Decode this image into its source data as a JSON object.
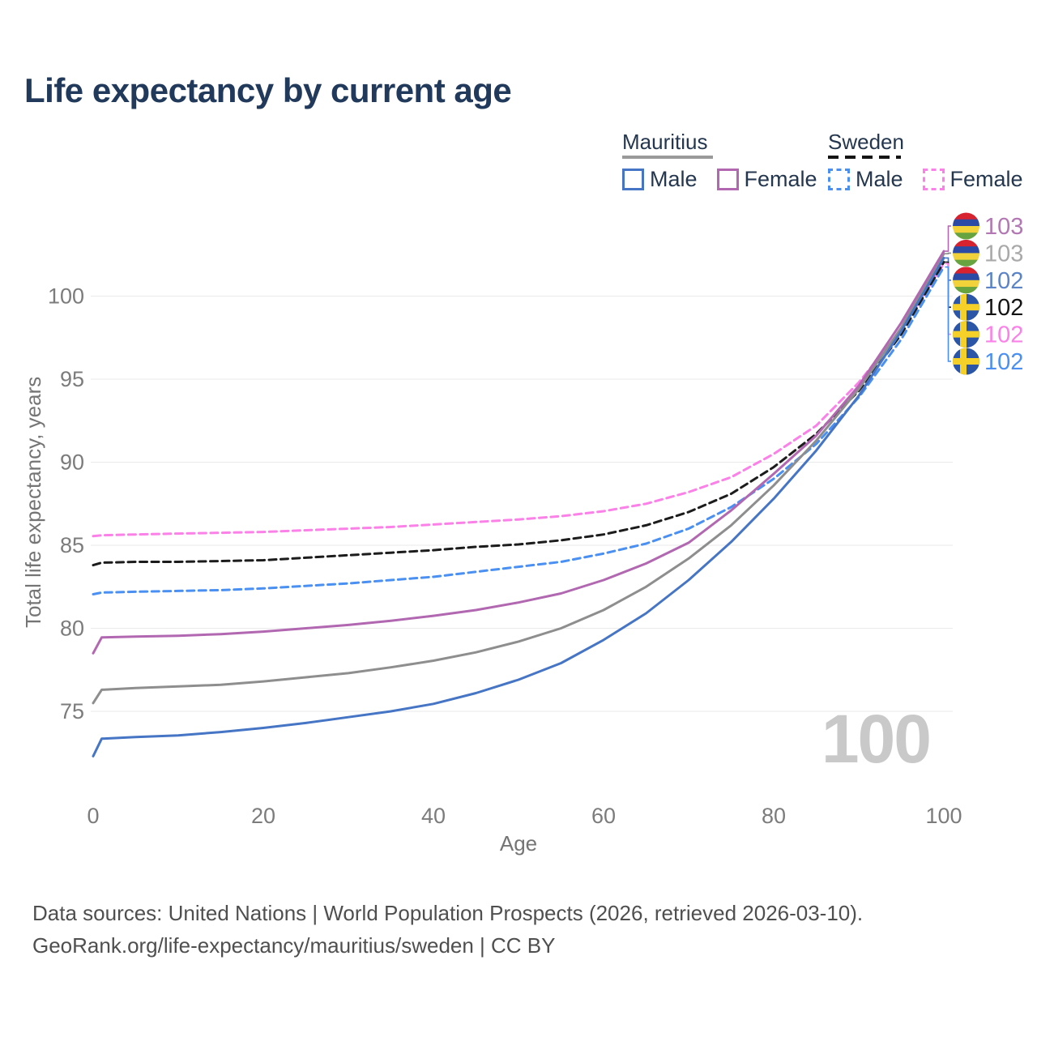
{
  "title": "Life expectancy by current age",
  "legend": {
    "groups": [
      {
        "country": "Mauritius",
        "line_style": "solid",
        "line_color": "#9a9a9a",
        "items": [
          {
            "label": "Male",
            "color": "#4575c4",
            "dashed": false
          },
          {
            "label": "Female",
            "color": "#b168b1",
            "dashed": false
          }
        ]
      },
      {
        "country": "Sweden",
        "line_style": "dashed",
        "line_color": "#141414",
        "items": [
          {
            "label": "Male",
            "color": "#4a90f2",
            "dashed": true
          },
          {
            "label": "Female",
            "color": "#fb80e8",
            "dashed": true
          }
        ]
      }
    ]
  },
  "chart_data": {
    "type": "line",
    "title": "Life expectancy by current age",
    "xlabel": "Age",
    "ylabel": "Total life expectancy, years",
    "xlim": [
      0,
      100
    ],
    "ylim": [
      72,
      104
    ],
    "x_ticks": [
      0,
      20,
      40,
      60,
      80,
      100
    ],
    "y_ticks": [
      75,
      80,
      85,
      90,
      95,
      100
    ],
    "grid": "horizontal",
    "legend_position": "top-right",
    "age_watermark": "100",
    "grid_color": "#eaeaea",
    "tick_color": "#7c7c7c",
    "flag_colors": {
      "mauritius": [
        "#d6232f",
        "#2b4aa5",
        "#f2d23a",
        "#67a33e"
      ],
      "sweden": {
        "field": "#2b55a7",
        "cross": "#f5d028"
      }
    },
    "series": [
      {
        "name": "Sweden Female",
        "country": "Sweden",
        "sex": "Female",
        "color": "#fb80e8",
        "dashed": true,
        "flag": "sweden",
        "end_label": {
          "text": "102",
          "color": "#fb80e8"
        },
        "points": [
          [
            0,
            85.55
          ],
          [
            1,
            85.6
          ],
          [
            5,
            85.65
          ],
          [
            10,
            85.7
          ],
          [
            15,
            85.75
          ],
          [
            20,
            85.8
          ],
          [
            25,
            85.9
          ],
          [
            30,
            86.0
          ],
          [
            35,
            86.1
          ],
          [
            40,
            86.25
          ],
          [
            45,
            86.4
          ],
          [
            50,
            86.55
          ],
          [
            55,
            86.75
          ],
          [
            60,
            87.05
          ],
          [
            65,
            87.5
          ],
          [
            70,
            88.2
          ],
          [
            75,
            89.1
          ],
          [
            80,
            90.5
          ],
          [
            85,
            92.2
          ],
          [
            90,
            94.8
          ],
          [
            95,
            98.0
          ],
          [
            100,
            101.95
          ]
        ]
      },
      {
        "name": "Sweden",
        "country": "Sweden",
        "sex": "Both sexes",
        "color": "#1c1c1c",
        "dashed": true,
        "flag": "sweden",
        "end_label": {
          "text": "102",
          "color": "#141414"
        },
        "points": [
          [
            0,
            83.8
          ],
          [
            1,
            83.95
          ],
          [
            5,
            84.0
          ],
          [
            10,
            84.0
          ],
          [
            15,
            84.05
          ],
          [
            20,
            84.1
          ],
          [
            25,
            84.25
          ],
          [
            30,
            84.4
          ],
          [
            35,
            84.55
          ],
          [
            40,
            84.7
          ],
          [
            45,
            84.9
          ],
          [
            50,
            85.05
          ],
          [
            55,
            85.3
          ],
          [
            60,
            85.65
          ],
          [
            65,
            86.2
          ],
          [
            70,
            87.0
          ],
          [
            75,
            88.1
          ],
          [
            80,
            89.7
          ],
          [
            85,
            91.7
          ],
          [
            90,
            94.3
          ],
          [
            95,
            97.7
          ],
          [
            100,
            102.05
          ]
        ]
      },
      {
        "name": "Sweden Male",
        "country": "Sweden",
        "sex": "Male",
        "color": "#4a90f2",
        "dashed": true,
        "flag": "sweden",
        "end_label": {
          "text": "102",
          "color": "#4a90f2"
        },
        "points": [
          [
            0,
            82.05
          ],
          [
            1,
            82.15
          ],
          [
            5,
            82.2
          ],
          [
            10,
            82.25
          ],
          [
            15,
            82.3
          ],
          [
            20,
            82.4
          ],
          [
            25,
            82.55
          ],
          [
            30,
            82.7
          ],
          [
            35,
            82.9
          ],
          [
            40,
            83.1
          ],
          [
            45,
            83.4
          ],
          [
            50,
            83.7
          ],
          [
            55,
            84.0
          ],
          [
            60,
            84.5
          ],
          [
            65,
            85.1
          ],
          [
            70,
            86.0
          ],
          [
            75,
            87.3
          ],
          [
            80,
            89.0
          ],
          [
            85,
            91.1
          ],
          [
            90,
            93.9
          ],
          [
            95,
            97.4
          ],
          [
            100,
            101.75
          ]
        ]
      },
      {
        "name": "Mauritius",
        "country": "Mauritius",
        "sex": "Both sexes",
        "color": "#8e8e8e",
        "dashed": false,
        "flag": "mauritius",
        "end_label": {
          "text": "103",
          "color": "#a9a9a9"
        },
        "points": [
          [
            0,
            75.5
          ],
          [
            1,
            76.3
          ],
          [
            5,
            76.4
          ],
          [
            10,
            76.5
          ],
          [
            15,
            76.6
          ],
          [
            20,
            76.8
          ],
          [
            25,
            77.05
          ],
          [
            30,
            77.3
          ],
          [
            35,
            77.65
          ],
          [
            40,
            78.05
          ],
          [
            45,
            78.55
          ],
          [
            50,
            79.2
          ],
          [
            55,
            80.0
          ],
          [
            60,
            81.1
          ],
          [
            65,
            82.5
          ],
          [
            70,
            84.2
          ],
          [
            75,
            86.2
          ],
          [
            80,
            88.6
          ],
          [
            85,
            91.3
          ],
          [
            90,
            94.4
          ],
          [
            95,
            98.1
          ],
          [
            100,
            102.55
          ]
        ]
      },
      {
        "name": "Mauritius Female",
        "country": "Mauritius",
        "sex": "Female",
        "color": "#b168b1",
        "dashed": false,
        "flag": "mauritius",
        "end_label": {
          "text": "103",
          "color": "#b377b3"
        },
        "points": [
          [
            0,
            78.5
          ],
          [
            1,
            79.45
          ],
          [
            5,
            79.5
          ],
          [
            10,
            79.55
          ],
          [
            15,
            79.65
          ],
          [
            20,
            79.8
          ],
          [
            25,
            80.0
          ],
          [
            30,
            80.2
          ],
          [
            35,
            80.45
          ],
          [
            40,
            80.75
          ],
          [
            45,
            81.1
          ],
          [
            50,
            81.55
          ],
          [
            55,
            82.1
          ],
          [
            60,
            82.9
          ],
          [
            65,
            83.9
          ],
          [
            70,
            85.15
          ],
          [
            75,
            87.1
          ],
          [
            80,
            89.3
          ],
          [
            85,
            91.6
          ],
          [
            90,
            94.6
          ],
          [
            95,
            98.4
          ],
          [
            100,
            102.7
          ]
        ]
      },
      {
        "name": "Mauritius Male",
        "country": "Mauritius",
        "sex": "Male",
        "color": "#4575c4",
        "dashed": false,
        "flag": "mauritius",
        "end_label": {
          "text": "102",
          "color": "#5b84c8"
        },
        "points": [
          [
            0,
            72.3
          ],
          [
            1,
            73.35
          ],
          [
            5,
            73.45
          ],
          [
            10,
            73.55
          ],
          [
            15,
            73.75
          ],
          [
            20,
            74.0
          ],
          [
            25,
            74.3
          ],
          [
            30,
            74.65
          ],
          [
            35,
            75.0
          ],
          [
            40,
            75.45
          ],
          [
            45,
            76.1
          ],
          [
            50,
            76.9
          ],
          [
            55,
            77.9
          ],
          [
            60,
            79.3
          ],
          [
            65,
            80.9
          ],
          [
            70,
            82.9
          ],
          [
            75,
            85.2
          ],
          [
            80,
            87.8
          ],
          [
            85,
            90.7
          ],
          [
            90,
            94.0
          ],
          [
            95,
            97.9
          ],
          [
            100,
            102.3
          ]
        ]
      }
    ]
  },
  "footer": {
    "line1": "Data sources: United Nations | World Population Prospects (2026, retrieved 2026-03-10).",
    "line2": "GeoRank.org/life-expectancy/mauritius/sweden | CC BY"
  }
}
